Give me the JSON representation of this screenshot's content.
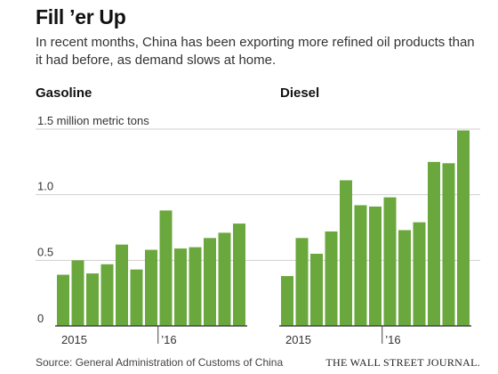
{
  "title": "Fill ’er Up",
  "subtitle": "In recent months, China has been exporting more refined oil products than it had before, as demand slows at home.",
  "source": "Source: General Administration of Customs of China",
  "publisher": "THE WALL STREET JOURNAL.",
  "colors": {
    "bar": "#6aa83e",
    "grid": "#cfcfcf",
    "baseline": "#444444"
  },
  "chart_data": [
    {
      "type": "bar",
      "title": "Gasoline",
      "ylabel": "million metric tons",
      "ylim": [
        0,
        1.5
      ],
      "yticks": [
        0,
        0.5,
        1.0,
        1.5
      ],
      "ytick_labels": [
        "0",
        "0.5",
        "1.0",
        "1.5 million metric tons"
      ],
      "xtick_labels": [
        "2015",
        "’16"
      ],
      "values": [
        0.39,
        0.5,
        0.4,
        0.47,
        0.62,
        0.43,
        0.58,
        0.88,
        0.59,
        0.6,
        0.67,
        0.71,
        0.78
      ],
      "grid": true
    },
    {
      "type": "bar",
      "title": "Diesel",
      "ylabel": "million metric tons",
      "ylim": [
        0,
        1.5
      ],
      "yticks": [
        0,
        0.5,
        1.0,
        1.5
      ],
      "xtick_labels": [
        "2015",
        "’16"
      ],
      "values": [
        0.38,
        0.67,
        0.55,
        0.72,
        1.11,
        0.92,
        0.91,
        0.98,
        0.73,
        0.79,
        1.25,
        1.24,
        1.49
      ],
      "grid": true
    }
  ]
}
